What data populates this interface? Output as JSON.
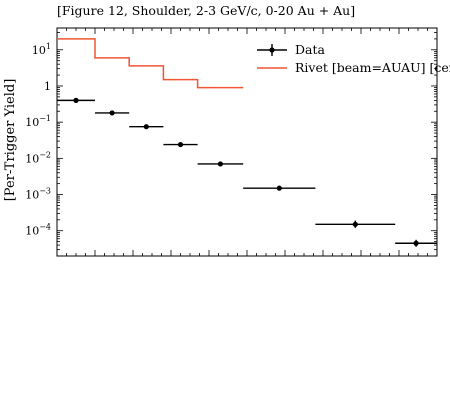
{
  "chart_data": {
    "type": "scatter",
    "title": "[Figure 12, Shoulder, 2-3 GeV/c, 0-20 Au + Au]",
    "xlabel": "",
    "ylabel": "[Per-Trigger Yield]",
    "xlim": [
      0,
      1
    ],
    "ylim": [
      2e-05,
      40
    ],
    "yscale": "log",
    "grid": false,
    "legend_position": "top-right",
    "y_ticks": [
      {
        "value": 0.0001,
        "base": "10",
        "exp": "−4"
      },
      {
        "value": 0.001,
        "base": "10",
        "exp": "−3"
      },
      {
        "value": 0.01,
        "base": "10",
        "exp": "−2"
      },
      {
        "value": 0.1,
        "base": "10",
        "exp": "−1"
      },
      {
        "value": 1,
        "base": "1",
        "exp": ""
      },
      {
        "value": 10,
        "base": "10",
        "exp": "1"
      }
    ],
    "series": [
      {
        "name": "Data",
        "kind": "points",
        "color": "#000000",
        "points": [
          {
            "x": 0.05,
            "xerr": 0.05,
            "y": 0.4,
            "ylo": 0.38,
            "yhi": 0.42
          },
          {
            "x": 0.145,
            "xerr": 0.045,
            "y": 0.18,
            "ylo": 0.17,
            "yhi": 0.19
          },
          {
            "x": 0.235,
            "xerr": 0.045,
            "y": 0.075,
            "ylo": 0.071,
            "yhi": 0.079
          },
          {
            "x": 0.325,
            "xerr": 0.045,
            "y": 0.024,
            "ylo": 0.0228,
            "yhi": 0.0252
          },
          {
            "x": 0.43,
            "xerr": 0.06,
            "y": 0.007,
            "ylo": 0.0066,
            "yhi": 0.0074
          },
          {
            "x": 0.585,
            "xerr": 0.095,
            "y": 0.0015,
            "ylo": 0.0014,
            "yhi": 0.0016
          },
          {
            "x": 0.785,
            "xerr": 0.105,
            "y": 0.00015,
            "ylo": 0.00012,
            "yhi": 0.00019
          },
          {
            "x": 0.945,
            "xerr": 0.055,
            "y": 4.5e-05,
            "ylo": 3.6e-05,
            "yhi": 5.6e-05
          }
        ]
      },
      {
        "name": "Rivet [beam=AUAU] [cen",
        "kind": "step",
        "color": "#ee5533",
        "bins": [
          {
            "x0": 0.0,
            "x1": 0.1,
            "y": 20
          },
          {
            "x0": 0.1,
            "x1": 0.19,
            "y": 6
          },
          {
            "x0": 0.19,
            "x1": 0.28,
            "y": 3.6
          },
          {
            "x0": 0.28,
            "x1": 0.37,
            "y": 1.5
          },
          {
            "x0": 0.37,
            "x1": 0.49,
            "y": 0.9
          }
        ]
      }
    ]
  }
}
